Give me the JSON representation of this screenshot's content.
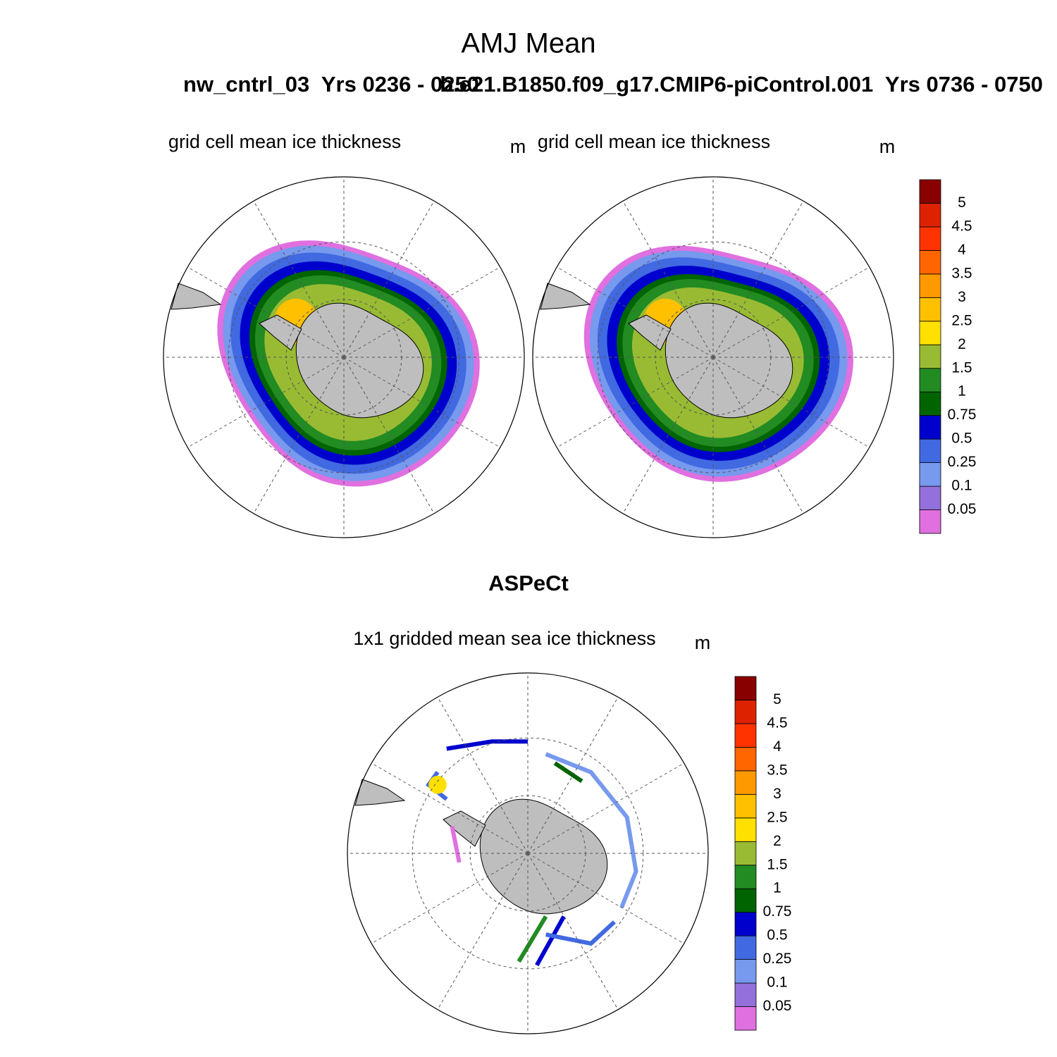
{
  "title": "AMJ Mean",
  "case_titles": [
    "nw_cntrl_03  Yrs 0236 - 0250",
    "b.e21.B1850.f09_g17.CMIP6-piControl.001  Yrs 0736 - 0750"
  ],
  "panels": [
    {
      "title": "grid cell mean ice thickness",
      "units": "m"
    },
    {
      "title": "grid cell mean ice thickness",
      "units": "m"
    }
  ],
  "obs": {
    "title": "ASPeCt",
    "subtitle": "1x1 gridded mean sea ice thickness",
    "units": "m"
  },
  "colorbar": {
    "levels": [
      0.05,
      0.1,
      0.25,
      0.5,
      0.75,
      1,
      1.5,
      2,
      2.5,
      3,
      3.5,
      4,
      4.5,
      5
    ],
    "colors": [
      "#e070e0",
      "#9370db",
      "#7799ee",
      "#4169e1",
      "#0000cd",
      "#006400",
      "#228b22",
      "#99bb33",
      "#ffe000",
      "#ffc000",
      "#ff9900",
      "#ff6600",
      "#ff3300",
      "#dd2200",
      "#880000"
    ]
  }
}
